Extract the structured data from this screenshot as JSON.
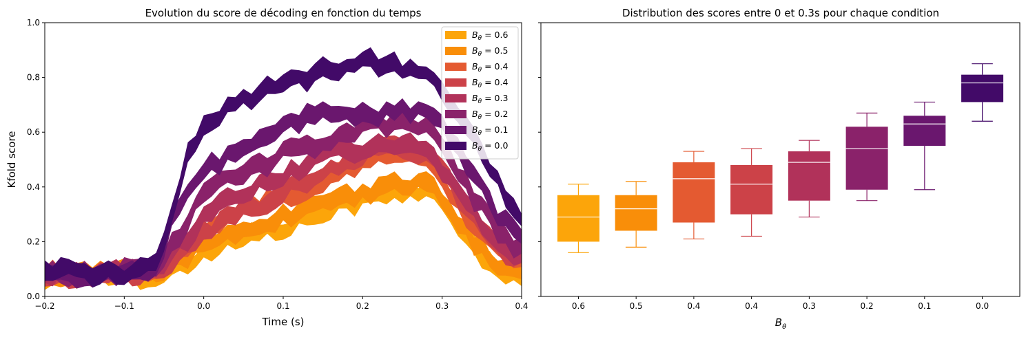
{
  "chart_data": [
    {
      "type": "area",
      "title": "Evolution du score de décoding en fonction du temps",
      "xlabel": "Time (s)",
      "ylabel": "Kfold score",
      "xlim": [
        -0.2,
        0.4
      ],
      "ylim": [
        0.0,
        1.0
      ],
      "xticks": [
        "−0.2",
        "−0.1",
        "0.0",
        "0.1",
        "0.2",
        "0.3",
        "0.4"
      ],
      "yticks": [
        "0.0",
        "0.2",
        "0.4",
        "0.6",
        "0.8",
        "1.0"
      ],
      "legend_position": "top-right",
      "legend_prefix": "B",
      "legend_sub": "θ",
      "x": {
        "start": -0.2,
        "step": 0.01,
        "count": 61
      },
      "series": [
        {
          "name": "= 0.6",
          "color": "#fca50a",
          "keys": [
            [
              -0.2,
              0.07
            ],
            [
              -0.1,
              0.08
            ],
            [
              -0.06,
              0.08
            ],
            [
              -0.02,
              0.12
            ],
            [
              0.0,
              0.16
            ],
            [
              0.05,
              0.22
            ],
            [
              0.1,
              0.25
            ],
            [
              0.15,
              0.31
            ],
            [
              0.2,
              0.36
            ],
            [
              0.25,
              0.39
            ],
            [
              0.28,
              0.38
            ],
            [
              0.3,
              0.33
            ],
            [
              0.34,
              0.18
            ],
            [
              0.37,
              0.1
            ],
            [
              0.4,
              0.06
            ]
          ],
          "width": 0.06
        },
        {
          "name": "= 0.5",
          "color": "#f98e09",
          "keys": [
            [
              -0.2,
              0.08
            ],
            [
              -0.1,
              0.09
            ],
            [
              -0.06,
              0.09
            ],
            [
              -0.02,
              0.14
            ],
            [
              0.0,
              0.19
            ],
            [
              0.05,
              0.24
            ],
            [
              0.1,
              0.29
            ],
            [
              0.15,
              0.34
            ],
            [
              0.2,
              0.38
            ],
            [
              0.25,
              0.41
            ],
            [
              0.28,
              0.41
            ],
            [
              0.3,
              0.36
            ],
            [
              0.34,
              0.2
            ],
            [
              0.37,
              0.12
            ],
            [
              0.4,
              0.08
            ]
          ],
          "width": 0.06
        },
        {
          "name": "= 0.4",
          "color": "#e45a31",
          "keys": [
            [
              -0.2,
              0.08
            ],
            [
              -0.1,
              0.09
            ],
            [
              -0.06,
              0.1
            ],
            [
              -0.02,
              0.17
            ],
            [
              0.0,
              0.23
            ],
            [
              0.05,
              0.31
            ],
            [
              0.1,
              0.37
            ],
            [
              0.15,
              0.43
            ],
            [
              0.2,
              0.5
            ],
            [
              0.25,
              0.52
            ],
            [
              0.28,
              0.5
            ],
            [
              0.3,
              0.42
            ],
            [
              0.34,
              0.26
            ],
            [
              0.37,
              0.16
            ],
            [
              0.4,
              0.12
            ]
          ],
          "width": 0.06
        },
        {
          "name": "= 0.4",
          "color": "#cc4248",
          "keys": [
            [
              -0.2,
              0.07
            ],
            [
              -0.1,
              0.08
            ],
            [
              -0.06,
              0.09
            ],
            [
              -0.02,
              0.17
            ],
            [
              0.0,
              0.24
            ],
            [
              0.05,
              0.31
            ],
            [
              0.1,
              0.38
            ],
            [
              0.15,
              0.45
            ],
            [
              0.2,
              0.52
            ],
            [
              0.25,
              0.54
            ],
            [
              0.28,
              0.52
            ],
            [
              0.3,
              0.45
            ],
            [
              0.34,
              0.29
            ],
            [
              0.37,
              0.18
            ],
            [
              0.4,
              0.13
            ]
          ],
          "width": 0.06
        },
        {
          "name": "= 0.3",
          "color": "#b1325a",
          "keys": [
            [
              -0.2,
              0.08
            ],
            [
              -0.1,
              0.09
            ],
            [
              -0.06,
              0.1
            ],
            [
              -0.02,
              0.22
            ],
            [
              0.0,
              0.3
            ],
            [
              0.05,
              0.38
            ],
            [
              0.1,
              0.44
            ],
            [
              0.15,
              0.51
            ],
            [
              0.2,
              0.54
            ],
            [
              0.25,
              0.55
            ],
            [
              0.28,
              0.53
            ],
            [
              0.3,
              0.46
            ],
            [
              0.34,
              0.3
            ],
            [
              0.37,
              0.2
            ],
            [
              0.4,
              0.14
            ]
          ],
          "width": 0.06
        },
        {
          "name": "= 0.2",
          "color": "#8a226a",
          "keys": [
            [
              -0.2,
              0.08
            ],
            [
              -0.1,
              0.09
            ],
            [
              -0.06,
              0.1
            ],
            [
              -0.02,
              0.28
            ],
            [
              0.0,
              0.38
            ],
            [
              0.05,
              0.45
            ],
            [
              0.1,
              0.52
            ],
            [
              0.15,
              0.57
            ],
            [
              0.2,
              0.61
            ],
            [
              0.25,
              0.63
            ],
            [
              0.28,
              0.62
            ],
            [
              0.3,
              0.55
            ],
            [
              0.34,
              0.36
            ],
            [
              0.37,
              0.24
            ],
            [
              0.4,
              0.17
            ]
          ],
          "width": 0.06
        },
        {
          "name": "= 0.1",
          "color": "#6a176e",
          "keys": [
            [
              -0.2,
              0.08
            ],
            [
              -0.1,
              0.09
            ],
            [
              -0.06,
              0.1
            ],
            [
              -0.03,
              0.35
            ],
            [
              0.0,
              0.46
            ],
            [
              0.05,
              0.54
            ],
            [
              0.1,
              0.62
            ],
            [
              0.15,
              0.68
            ],
            [
              0.2,
              0.66
            ],
            [
              0.25,
              0.68
            ],
            [
              0.28,
              0.67
            ],
            [
              0.3,
              0.62
            ],
            [
              0.34,
              0.45
            ],
            [
              0.37,
              0.3
            ],
            [
              0.4,
              0.2
            ]
          ],
          "width": 0.06
        },
        {
          "name": "= 0.0",
          "color": "#420a68",
          "keys": [
            [
              -0.2,
              0.09
            ],
            [
              -0.1,
              0.09
            ],
            [
              -0.06,
              0.11
            ],
            [
              -0.04,
              0.32
            ],
            [
              -0.02,
              0.52
            ],
            [
              0.0,
              0.63
            ],
            [
              0.05,
              0.72
            ],
            [
              0.1,
              0.78
            ],
            [
              0.15,
              0.82
            ],
            [
              0.2,
              0.86
            ],
            [
              0.25,
              0.84
            ],
            [
              0.28,
              0.81
            ],
            [
              0.3,
              0.76
            ],
            [
              0.34,
              0.58
            ],
            [
              0.37,
              0.42
            ],
            [
              0.4,
              0.26
            ]
          ],
          "width": 0.06
        }
      ]
    },
    {
      "type": "box",
      "title": "Distribution des scores entre 0 et 0.3s pour chaque condition",
      "xlabel_prefix": "B",
      "xlabel_sub": "θ",
      "ylim": [
        0.0,
        1.0
      ],
      "categories": [
        "0.6",
        "0.5",
        "0.4",
        "0.4",
        "0.3",
        "0.2",
        "0.1",
        "0.0"
      ],
      "boxes": [
        {
          "color": "#fca50a",
          "whislo": 0.16,
          "q1": 0.2,
          "med": 0.29,
          "q3": 0.37,
          "whishi": 0.41
        },
        {
          "color": "#f98e09",
          "whislo": 0.18,
          "q1": 0.24,
          "med": 0.32,
          "q3": 0.37,
          "whishi": 0.42
        },
        {
          "color": "#e45a31",
          "whislo": 0.21,
          "q1": 0.27,
          "med": 0.43,
          "q3": 0.49,
          "whishi": 0.53
        },
        {
          "color": "#cc4248",
          "whislo": 0.22,
          "q1": 0.3,
          "med": 0.41,
          "q3": 0.48,
          "whishi": 0.54
        },
        {
          "color": "#b1325a",
          "whislo": 0.29,
          "q1": 0.35,
          "med": 0.49,
          "q3": 0.53,
          "whishi": 0.57
        },
        {
          "color": "#8a226a",
          "whislo": 0.35,
          "q1": 0.39,
          "med": 0.54,
          "q3": 0.62,
          "whishi": 0.67
        },
        {
          "color": "#6a176e",
          "whislo": 0.39,
          "q1": 0.55,
          "med": 0.63,
          "q3": 0.66,
          "whishi": 0.71
        },
        {
          "color": "#420a68",
          "whislo": 0.64,
          "q1": 0.71,
          "med": 0.78,
          "q3": 0.81,
          "whishi": 0.85
        }
      ]
    }
  ]
}
